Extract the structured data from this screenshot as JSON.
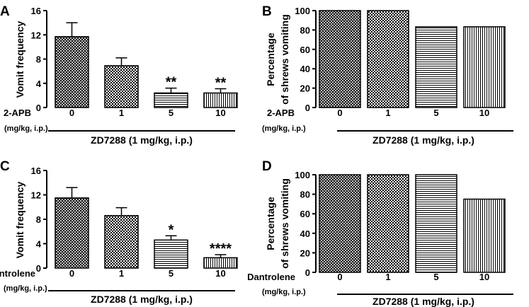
{
  "chart_data": [
    {
      "panel": "A",
      "type": "bar",
      "ylabel": "Vomit frequency",
      "ylim": [
        0,
        16
      ],
      "yticks": [
        0,
        4,
        8,
        12,
        16
      ],
      "categories": [
        "0",
        "1",
        "5",
        "10"
      ],
      "values": [
        11.7,
        6.9,
        2.4,
        2.4
      ],
      "errors": [
        2.3,
        1.3,
        0.8,
        0.7
      ],
      "significance": [
        "",
        "",
        "**",
        "**"
      ],
      "patterns": [
        "crosshatch",
        "checker",
        "hlines",
        "vlines"
      ],
      "drug_label": "2-APB",
      "dose_label": "(mg/kg, i.p.)",
      "group_label": "ZD7288 (1 mg/kg, i.p.)"
    },
    {
      "panel": "B",
      "type": "bar",
      "ylabel": [
        "Percentage",
        "of shrews vomiting"
      ],
      "ylim": [
        0,
        100
      ],
      "yticks": [
        0,
        20,
        40,
        60,
        80,
        100
      ],
      "categories": [
        "0",
        "1",
        "5",
        "10"
      ],
      "values": [
        100,
        100,
        83.3,
        83.3
      ],
      "patterns": [
        "crosshatch",
        "checker",
        "hlines",
        "vlines"
      ],
      "drug_label": "2-APB",
      "dose_label": "(mg/kg, i.p.)",
      "group_label": "ZD7288 (1 mg/kg, i.p.)"
    },
    {
      "panel": "C",
      "type": "bar",
      "ylabel": "Vomit frequency",
      "ylim": [
        0,
        16
      ],
      "yticks": [
        0,
        4,
        8,
        12,
        16
      ],
      "categories": [
        "0",
        "1",
        "5",
        "10"
      ],
      "values": [
        11.5,
        8.6,
        4.6,
        1.7
      ],
      "errors": [
        1.7,
        1.3,
        0.7,
        0.5
      ],
      "significance": [
        "",
        "",
        "*",
        "****"
      ],
      "patterns": [
        "crosshatch",
        "checker",
        "hlines",
        "vlines"
      ],
      "drug_label": "Dantrolene",
      "dose_label": "(mg/kg, i.p.)",
      "group_label": "ZD7288 (1 mg/kg, i.p.)"
    },
    {
      "panel": "D",
      "type": "bar",
      "ylabel": [
        "Percentage",
        "of shrews vomiting"
      ],
      "ylim": [
        0,
        100
      ],
      "yticks": [
        0,
        20,
        40,
        60,
        80,
        100
      ],
      "categories": [
        "0",
        "1",
        "5",
        "10"
      ],
      "values": [
        100,
        100,
        100,
        75
      ],
      "patterns": [
        "crosshatch",
        "checker",
        "hlines",
        "vlines"
      ],
      "drug_label": "Dantrolene",
      "dose_label": "(mg/kg, i.p.)",
      "group_label": "ZD7288 (1 mg/kg, i.p.)"
    }
  ]
}
